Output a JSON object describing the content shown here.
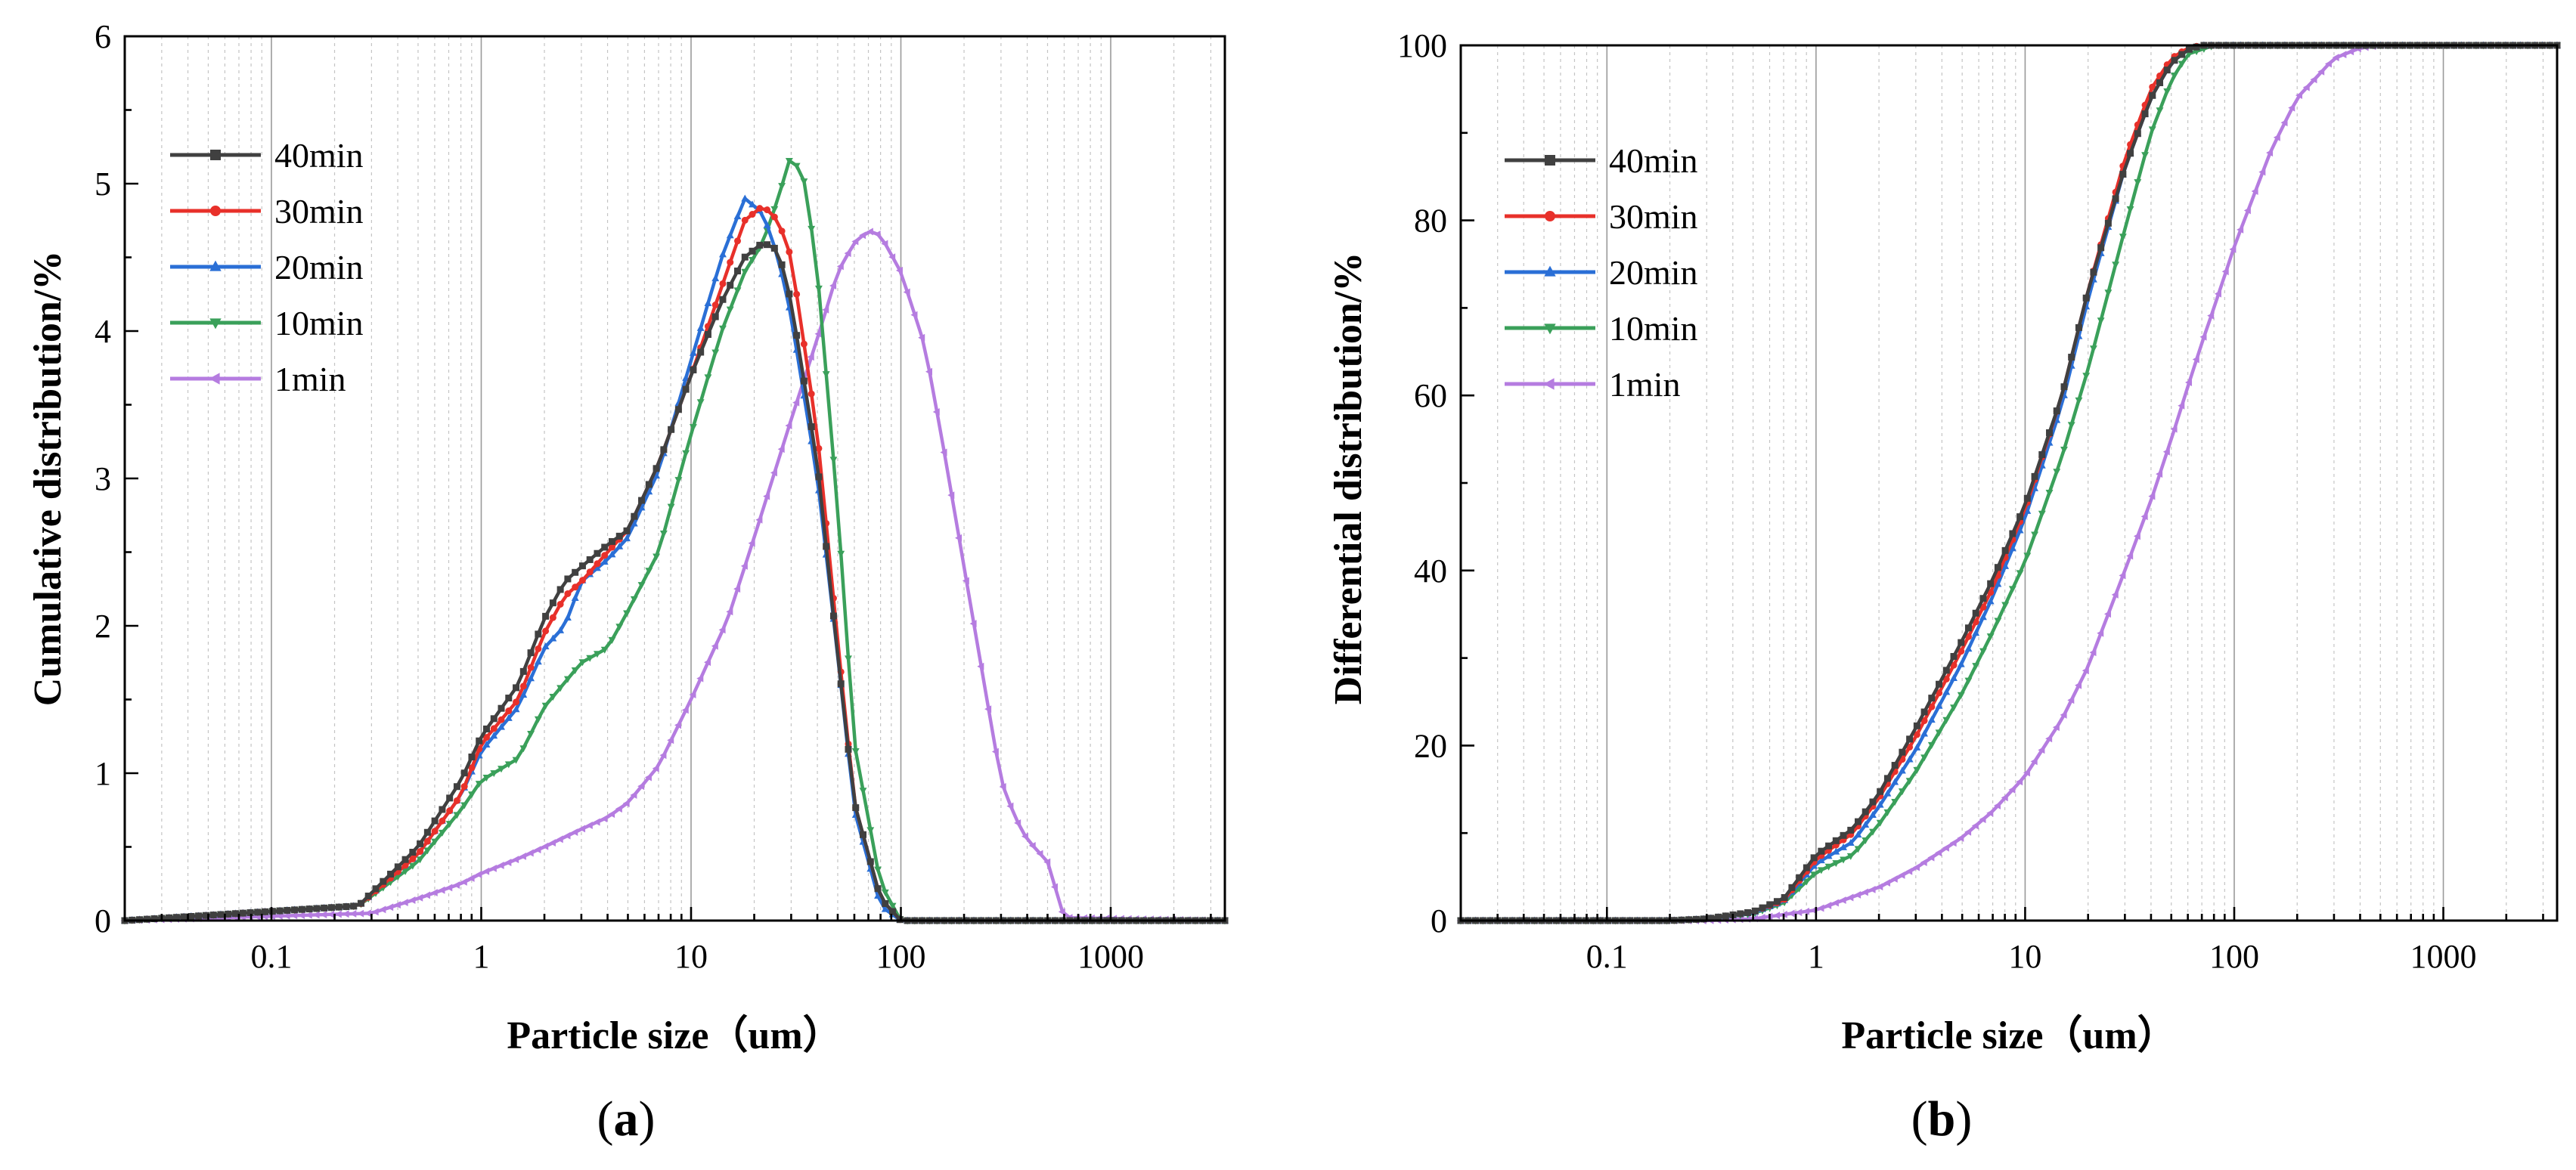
{
  "chart_data": [
    {
      "panel": "a",
      "caption_letter": "a",
      "type": "line",
      "xscale": "log",
      "xlabel": "Particle size（um）",
      "ylabel": "Cumulative distribution/%",
      "xlim": [
        0.02,
        3500
      ],
      "ylim": [
        0,
        6
      ],
      "xticks": [
        0.1,
        1,
        10,
        100,
        1000
      ],
      "xtick_labels": [
        "0.1",
        "1",
        "10",
        "100",
        "1000"
      ],
      "yticks": [
        0,
        1,
        2,
        3,
        4,
        5,
        6
      ],
      "ytick_labels": [
        "0",
        "1",
        "2",
        "3",
        "4",
        "5",
        "6"
      ],
      "grid": true,
      "legend_position": "top-left",
      "series": [
        {
          "name": "40min",
          "color": "#404040",
          "marker": "square",
          "x": [
            0.02,
            0.26,
            0.5,
            0.8,
            1.0,
            1.5,
            2.0,
            2.5,
            3.0,
            4.0,
            5.0,
            7.0,
            10.0,
            14.0,
            18.0,
            22.0,
            26.0,
            30.0,
            40.0,
            50.0,
            60.0,
            80.0,
            100.0,
            3500
          ],
          "y": [
            0,
            0.1,
            0.5,
            0.95,
            1.25,
            1.6,
            2.05,
            2.3,
            2.4,
            2.55,
            2.65,
            3.1,
            3.7,
            4.2,
            4.5,
            4.6,
            4.55,
            4.2,
            3.1,
            1.8,
            0.8,
            0.15,
            0,
            0
          ]
        },
        {
          "name": "30min",
          "color": "#e8302a",
          "marker": "circle",
          "x": [
            0.02,
            0.26,
            0.5,
            0.8,
            1.0,
            1.5,
            2.0,
            2.5,
            3.0,
            4.0,
            5.0,
            7.0,
            10.0,
            14.0,
            18.0,
            22.0,
            26.0,
            30.0,
            40.0,
            50.0,
            60.0,
            80.0,
            100.0,
            3500
          ],
          "y": [
            0,
            0.1,
            0.45,
            0.85,
            1.2,
            1.5,
            1.95,
            2.2,
            2.3,
            2.5,
            2.65,
            3.1,
            3.7,
            4.3,
            4.75,
            4.85,
            4.75,
            4.5,
            3.3,
            1.9,
            0.8,
            0.15,
            0,
            0
          ]
        },
        {
          "name": "20min",
          "color": "#2a6fd6",
          "marker": "triangle-up",
          "x": [
            0.02,
            0.26,
            0.5,
            0.8,
            1.0,
            1.5,
            2.0,
            2.5,
            3.0,
            4.0,
            5.0,
            7.0,
            10.0,
            14.0,
            18.0,
            22.0,
            26.0,
            30.0,
            40.0,
            50.0,
            60.0,
            80.0,
            100.0,
            3500
          ],
          "y": [
            0,
            0.1,
            0.45,
            0.85,
            1.15,
            1.45,
            1.85,
            2.0,
            2.3,
            2.45,
            2.6,
            3.05,
            3.8,
            4.5,
            4.9,
            4.8,
            4.5,
            4.1,
            3.0,
            1.8,
            0.75,
            0.1,
            0,
            0
          ]
        },
        {
          "name": "10min",
          "color": "#3aa05a",
          "marker": "triangle-down",
          "x": [
            0.02,
            0.26,
            0.5,
            0.8,
            1.0,
            1.5,
            2.0,
            3.0,
            4.0,
            5.0,
            7.0,
            10.0,
            14.0,
            18.0,
            22.0,
            26.0,
            30.0,
            35.0,
            40.0,
            50.0,
            60.0,
            80.0,
            100.0,
            3500
          ],
          "y": [
            0,
            0.1,
            0.4,
            0.75,
            0.95,
            1.1,
            1.45,
            1.75,
            1.85,
            2.1,
            2.5,
            3.3,
            4.0,
            4.4,
            4.6,
            4.9,
            5.2,
            5.0,
            4.4,
            2.8,
            1.2,
            0.25,
            0,
            0
          ]
        },
        {
          "name": "1min",
          "color": "#b57ce0",
          "marker": "triangle-left",
          "x": [
            0.02,
            0.3,
            0.5,
            0.8,
            1.0,
            1.5,
            2.0,
            3.0,
            4.0,
            5.0,
            7.0,
            10.0,
            15.0,
            20.0,
            30.0,
            40.0,
            50.0,
            60.0,
            70.0,
            80.0,
            100.0,
            130.0,
            160.0,
            200.0,
            250.0,
            300.0,
            350.0,
            400.0,
            500.0,
            600.0,
            3500
          ],
          "y": [
            0,
            0.05,
            0.15,
            0.25,
            0.32,
            0.42,
            0.5,
            0.62,
            0.7,
            0.8,
            1.05,
            1.5,
            2.05,
            2.6,
            3.4,
            3.95,
            4.4,
            4.6,
            4.68,
            4.65,
            4.4,
            3.9,
            3.2,
            2.4,
            1.6,
            0.95,
            0.7,
            0.55,
            0.4,
            0.02,
            0
          ]
        }
      ]
    },
    {
      "panel": "b",
      "caption_letter": "b",
      "type": "line",
      "xscale": "log",
      "xlabel": "Particle size（um）",
      "ylabel": "Differential distribution/%",
      "xlim": [
        0.02,
        3500
      ],
      "ylim": [
        0,
        100
      ],
      "xticks": [
        0.1,
        1,
        10,
        100,
        1000
      ],
      "xtick_labels": [
        "0.1",
        "1",
        "10",
        "100",
        "1000"
      ],
      "yticks": [
        0,
        20,
        40,
        60,
        80,
        100
      ],
      "ytick_labels": [
        "0",
        "20",
        "40",
        "60",
        "80",
        "100"
      ],
      "grid": true,
      "legend_position": "top-left",
      "series": [
        {
          "name": "40min",
          "color": "#404040",
          "marker": "square",
          "x": [
            0.02,
            0.2,
            0.3,
            0.5,
            0.7,
            1.0,
            1.5,
            2.0,
            3.0,
            5.0,
            7.0,
            10.0,
            15.0,
            20.0,
            30.0,
            40.0,
            50.0,
            60.0,
            70.0,
            3500
          ],
          "y": [
            0,
            0,
            0.2,
            1.0,
            2.5,
            7.5,
            10.5,
            14.5,
            22.0,
            32.0,
            39.0,
            47.5,
            60.0,
            72.0,
            86.0,
            94.0,
            98.0,
            99.5,
            100,
            100
          ]
        },
        {
          "name": "30min",
          "color": "#e8302a",
          "marker": "circle",
          "x": [
            0.02,
            0.2,
            0.3,
            0.5,
            0.7,
            1.0,
            1.5,
            2.0,
            3.0,
            5.0,
            7.0,
            10.0,
            15.0,
            20.0,
            30.0,
            40.0,
            50.0,
            60.0,
            70.0,
            3500
          ],
          "y": [
            0,
            0,
            0.2,
            1.0,
            2.3,
            7.0,
            10.0,
            14.0,
            21.0,
            31.0,
            38.0,
            47.0,
            60.0,
            72.0,
            87.0,
            95.0,
            98.5,
            99.7,
            100,
            100
          ]
        },
        {
          "name": "20min",
          "color": "#2a6fd6",
          "marker": "triangle-up",
          "x": [
            0.02,
            0.2,
            0.3,
            0.5,
            0.7,
            1.0,
            1.5,
            2.0,
            3.0,
            5.0,
            7.0,
            10.0,
            15.0,
            20.0,
            30.0,
            40.0,
            50.0,
            60.0,
            70.0,
            3500
          ],
          "y": [
            0,
            0,
            0.2,
            0.9,
            2.2,
            6.5,
            9.0,
            13.0,
            19.5,
            29.5,
            37.0,
            46.0,
            59.0,
            71.0,
            86.0,
            94.0,
            98.0,
            99.5,
            100,
            100
          ]
        },
        {
          "name": "10min",
          "color": "#3aa05a",
          "marker": "triangle-down",
          "x": [
            0.02,
            0.2,
            0.3,
            0.5,
            0.7,
            1.0,
            1.5,
            2.0,
            3.0,
            5.0,
            7.0,
            10.0,
            15.0,
            20.0,
            30.0,
            40.0,
            50.0,
            60.0,
            80.0,
            3500
          ],
          "y": [
            0,
            0,
            0.2,
            0.8,
            2.0,
            5.5,
            7.5,
            11.0,
            17.0,
            26.0,
            33.0,
            41.0,
            53.0,
            63.0,
            79.0,
            90.0,
            96.0,
            99.0,
            100,
            100
          ]
        },
        {
          "name": "1min",
          "color": "#b57ce0",
          "marker": "triangle-left",
          "x": [
            0.02,
            0.3,
            0.5,
            1.0,
            2.0,
            3.0,
            5.0,
            7.0,
            10.0,
            15.0,
            20.0,
            30.0,
            40.0,
            50.0,
            60.0,
            70.0,
            80.0,
            100.0,
            150.0,
            200.0,
            300.0,
            400.0,
            500.0,
            3500
          ],
          "y": [
            0,
            0,
            0.2,
            1.2,
            3.8,
            6.0,
            9.5,
            12.5,
            16.5,
            23.0,
            29.0,
            40.0,
            48.0,
            55.0,
            61.0,
            66.0,
            70.0,
            77.0,
            88.0,
            94.0,
            98.5,
            99.7,
            100,
            100
          ]
        }
      ]
    }
  ]
}
